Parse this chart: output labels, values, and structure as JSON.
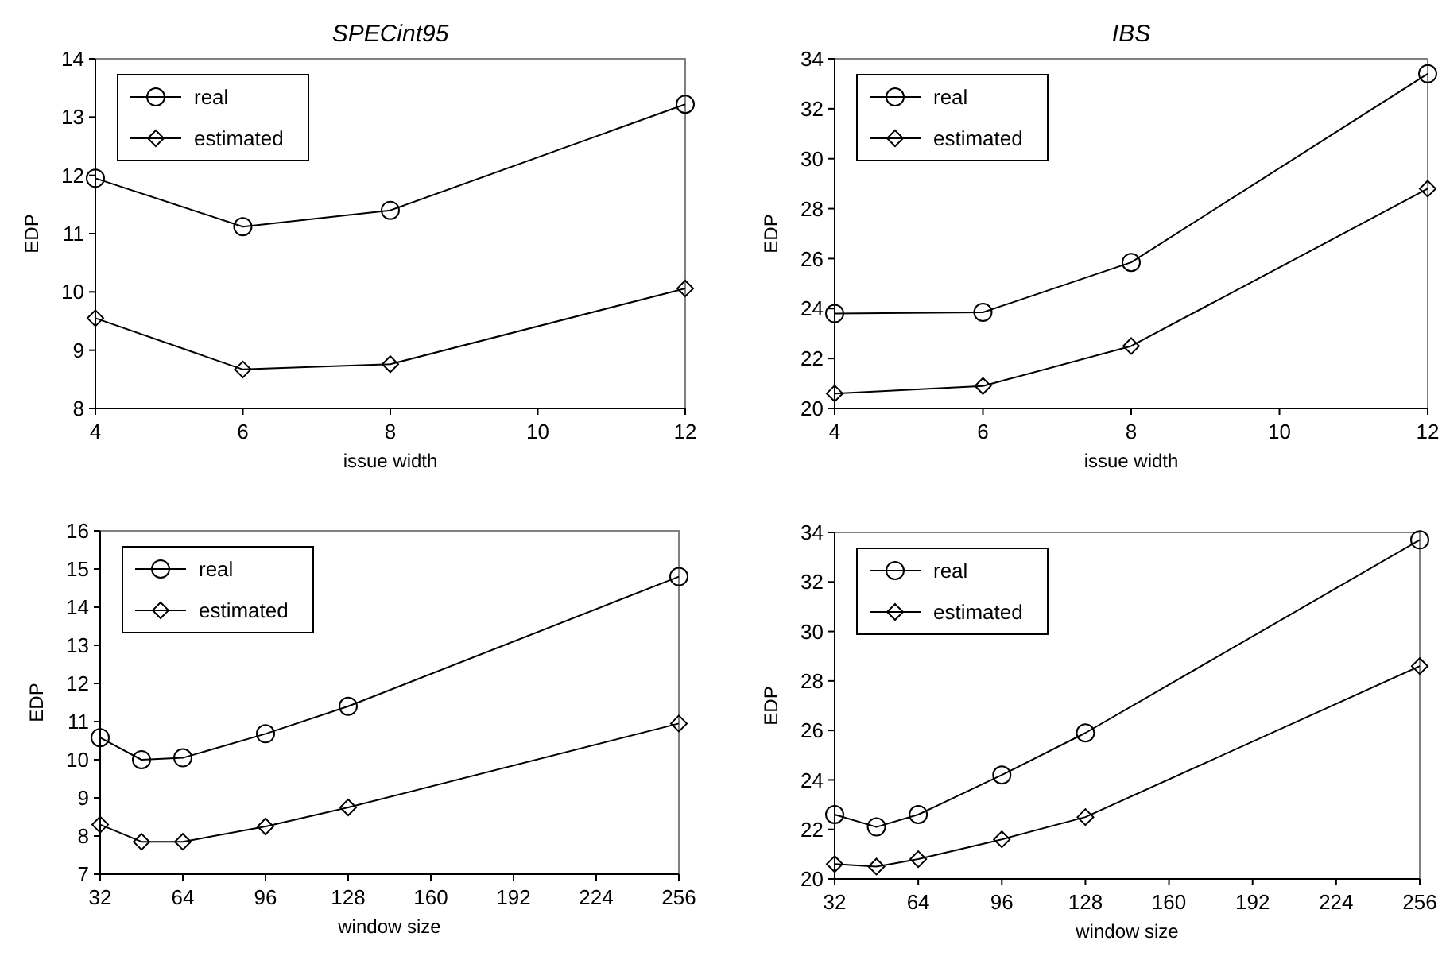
{
  "chart_data": [
    {
      "type": "line",
      "title": "SPECint95",
      "xlabel": "issue width",
      "ylabel": "EDP",
      "x": [
        4,
        6,
        8,
        12
      ],
      "xlim": [
        4,
        12
      ],
      "xticks": [
        4,
        6,
        8,
        10,
        12
      ],
      "ylim": [
        8,
        14
      ],
      "yticks": [
        8,
        9,
        10,
        11,
        12,
        13,
        14
      ],
      "grid": false,
      "legend": "top left",
      "series": [
        {
          "name": "real",
          "color": "#000000",
          "marker": "circle",
          "values": [
            11.95,
            11.12,
            11.4,
            13.22
          ]
        },
        {
          "name": "estimated",
          "color": "#000000",
          "marker": "diamond",
          "values": [
            9.55,
            8.67,
            8.76,
            10.06
          ]
        }
      ]
    },
    {
      "type": "line",
      "title": "IBS",
      "xlabel": "issue width",
      "ylabel": "EDP",
      "x": [
        4,
        6,
        8,
        12
      ],
      "xlim": [
        4,
        12
      ],
      "xticks": [
        4,
        6,
        8,
        10,
        12
      ],
      "ylim": [
        20,
        34
      ],
      "yticks": [
        20,
        22,
        24,
        26,
        28,
        30,
        32,
        34
      ],
      "grid": false,
      "legend": "top left",
      "series": [
        {
          "name": "real",
          "color": "#000000",
          "marker": "circle",
          "values": [
            23.8,
            23.85,
            25.85,
            33.4
          ]
        },
        {
          "name": "estimated",
          "color": "#000000",
          "marker": "diamond",
          "values": [
            20.6,
            20.9,
            22.5,
            28.8
          ]
        }
      ]
    },
    {
      "type": "line",
      "xlabel": "window size",
      "ylabel": "EDP",
      "x": [
        32,
        48,
        64,
        96,
        128,
        256
      ],
      "xlim": [
        32,
        256
      ],
      "xticks": [
        32,
        64,
        96,
        128,
        160,
        192,
        224,
        256
      ],
      "ylim": [
        7,
        16
      ],
      "yticks": [
        7,
        8,
        9,
        10,
        11,
        12,
        13,
        14,
        15,
        16
      ],
      "grid": false,
      "legend": "top left",
      "series": [
        {
          "name": "real",
          "color": "#000000",
          "marker": "circle",
          "values": [
            10.58,
            10.0,
            10.05,
            10.68,
            11.4,
            14.8
          ]
        },
        {
          "name": "estimated",
          "color": "#000000",
          "marker": "diamond",
          "values": [
            8.3,
            7.85,
            7.85,
            8.25,
            8.75,
            10.95
          ]
        }
      ]
    },
    {
      "type": "line",
      "xlabel": "window size",
      "ylabel": "EDP",
      "x": [
        32,
        48,
        64,
        96,
        128,
        256
      ],
      "xlim": [
        32,
        256
      ],
      "xticks": [
        32,
        64,
        96,
        128,
        160,
        192,
        224,
        256
      ],
      "ylim": [
        20,
        34
      ],
      "yticks": [
        20,
        22,
        24,
        26,
        28,
        30,
        32,
        34
      ],
      "grid": false,
      "legend": "top left",
      "series": [
        {
          "name": "real",
          "color": "#000000",
          "marker": "circle",
          "values": [
            22.6,
            22.1,
            22.6,
            24.2,
            25.9,
            33.7
          ]
        },
        {
          "name": "estimated",
          "color": "#000000",
          "marker": "diamond",
          "values": [
            20.6,
            20.5,
            20.8,
            21.6,
            22.5,
            28.6
          ]
        }
      ]
    }
  ]
}
